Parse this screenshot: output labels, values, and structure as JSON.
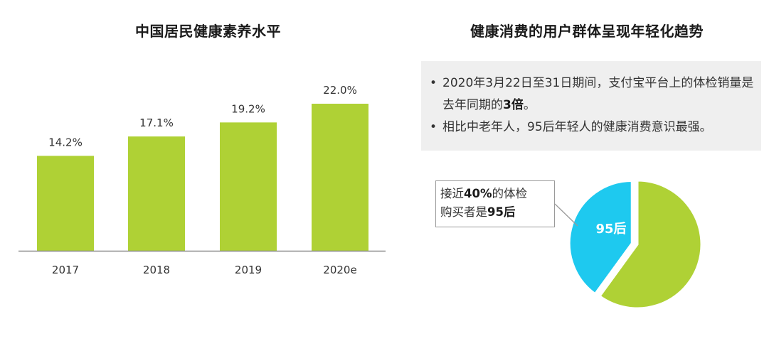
{
  "left_title": "中国居民健康素养水平",
  "right_title": "健康消费的用户群体呈现年轻化趋势",
  "notes": {
    "bullet": "•",
    "b1_part1": "2020年3月22日至31日期间，支付宝平台上的体检销量是去年同期的",
    "b1_bold": "3倍",
    "b1_part2": "。",
    "b2": "相比中老年人，95后年轻人的健康消费意识最强。"
  },
  "callout": {
    "p1": "接近",
    "bold1": "40%",
    "p2": "的体检",
    "p3": "购买者是",
    "bold2": "95后"
  },
  "colors": {
    "bar": "#afd135",
    "pie_main": "#afd135",
    "pie_highlight": "#1ec9ef",
    "note_bg": "#efefef"
  },
  "chart_data": [
    {
      "type": "bar",
      "title": "中国居民健康素养水平",
      "categories": [
        "2017",
        "2018",
        "2019",
        "2020e"
      ],
      "values": [
        14.2,
        17.1,
        19.2,
        22.0
      ],
      "value_labels": [
        "14.2%",
        "17.1%",
        "19.2%",
        "22.0%"
      ],
      "unit": "%",
      "ylim": [
        0,
        22.0
      ],
      "grid": false,
      "legend": "none"
    },
    {
      "type": "pie",
      "title": "健康消费的用户群体呈现年轻化趋势",
      "slices": [
        {
          "label": "95后",
          "value": 40
        },
        {
          "label": "",
          "value": 60
        }
      ],
      "legend": "none"
    }
  ]
}
